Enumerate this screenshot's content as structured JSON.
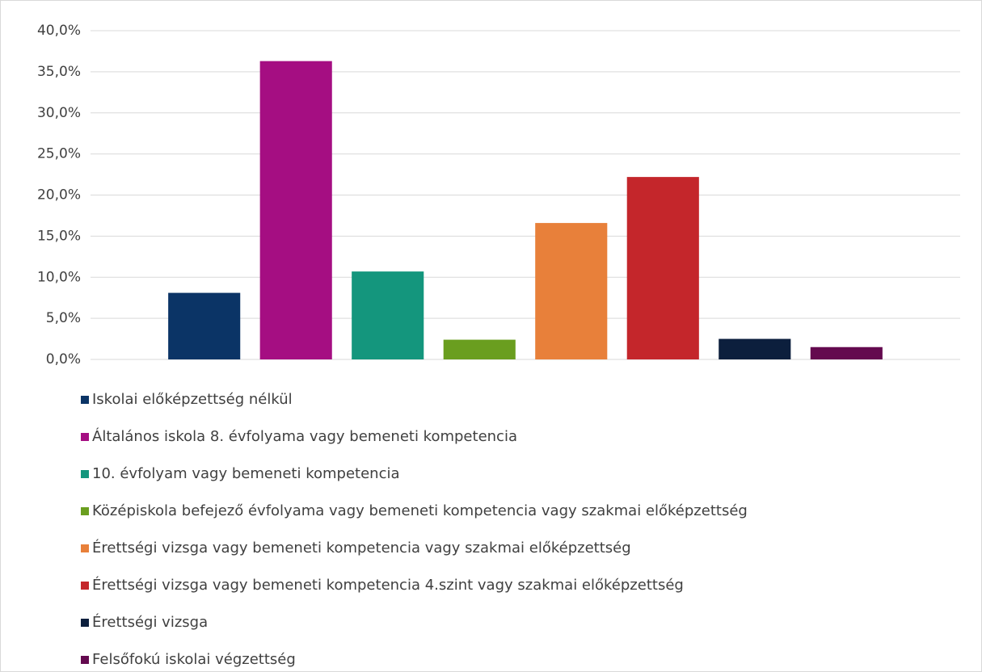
{
  "chart_data": {
    "type": "bar",
    "categories": [
      null
    ],
    "series": [
      {
        "name": "Iskolai előképzettség nélkül",
        "color": "#0b3466",
        "values": [
          8.1
        ]
      },
      {
        "name": "Általános iskola 8. évfolyama vagy bemeneti kompetencia",
        "color": "#a50e82",
        "values": [
          36.3
        ]
      },
      {
        "name": "10. évfolyam vagy bemeneti kompetencia",
        "color": "#14967d",
        "values": [
          10.7
        ]
      },
      {
        "name": "Középiskola befejező évfolyama vagy bemeneti kompetencia vagy szakmai előképzettség",
        "color": "#6a9e1f",
        "values": [
          2.4
        ]
      },
      {
        "name": "Érettségi vizsga vagy bemeneti kompetencia vagy szakmai előképzettség",
        "color": "#e8803a",
        "values": [
          16.6
        ]
      },
      {
        "name": "Érettségi vizsga vagy bemeneti kompetencia 4.szint vagy szakmai előképzettség",
        "color": "#c4262b",
        "values": [
          22.2
        ]
      },
      {
        "name": "Érettségi vizsga",
        "color": "#0c1f3d",
        "values": [
          2.5
        ]
      },
      {
        "name": "Felsőfokú iskolai végzettség",
        "color": "#640a4f",
        "values": [
          1.5
        ]
      }
    ],
    "ylim": [
      0,
      40
    ],
    "yticks": [
      {
        "value": 0,
        "label": "0,0%"
      },
      {
        "value": 5,
        "label": "5,0%"
      },
      {
        "value": 10,
        "label": "10,0%"
      },
      {
        "value": 15,
        "label": "15,0%"
      },
      {
        "value": 20,
        "label": "20,0%"
      },
      {
        "value": 25,
        "label": "25,0%"
      },
      {
        "value": 30,
        "label": "30,0%"
      },
      {
        "value": 35,
        "label": "35,0%"
      },
      {
        "value": 40,
        "label": "40,0%"
      }
    ],
    "grid": true,
    "legend": "bottom"
  }
}
